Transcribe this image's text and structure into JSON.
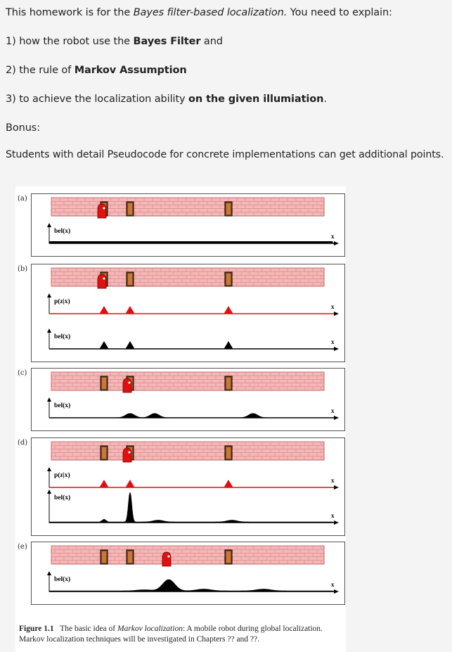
{
  "homework": {
    "line1_pre": "This homework is for the ",
    "line1_em": "Bayes filter-based localization.",
    "line1_post": " You need to explain:",
    "line2_pre": "1) how the robot use the ",
    "line2_bold": "Bayes Filter",
    "line2_post": " and",
    "line3_pre": "2) the rule of ",
    "line3_bold": "Markov Assumption",
    "line4_pre": "3) to achieve the localization ability ",
    "line4_bold": "on the given illumiation",
    "line4_post": ".",
    "bonus": "Bonus:",
    "students": "Students with detail Pseudocode for concrete implementations can get additional points."
  },
  "figure": {
    "panel_labels": [
      "(a)",
      "(b)",
      "(c)",
      "(d)",
      "(e)"
    ],
    "bel_label": "bel(x)",
    "pz_label": "p(z|x)",
    "x_label": "x",
    "caption_bold": "Figure 1.1",
    "caption_pre": "The basic idea of ",
    "caption_em": "Markov localization",
    "caption_post": ": A mobile robot during global localization. Markov localization techniques will be investigated in Chapters ?? and ??.",
    "colors": {
      "wall": "#f4b8b8",
      "brick_line": "#d88080",
      "door": "#8a4a18",
      "robot": "#e01010",
      "perception": "#e01010",
      "belief": "#000000"
    }
  }
}
